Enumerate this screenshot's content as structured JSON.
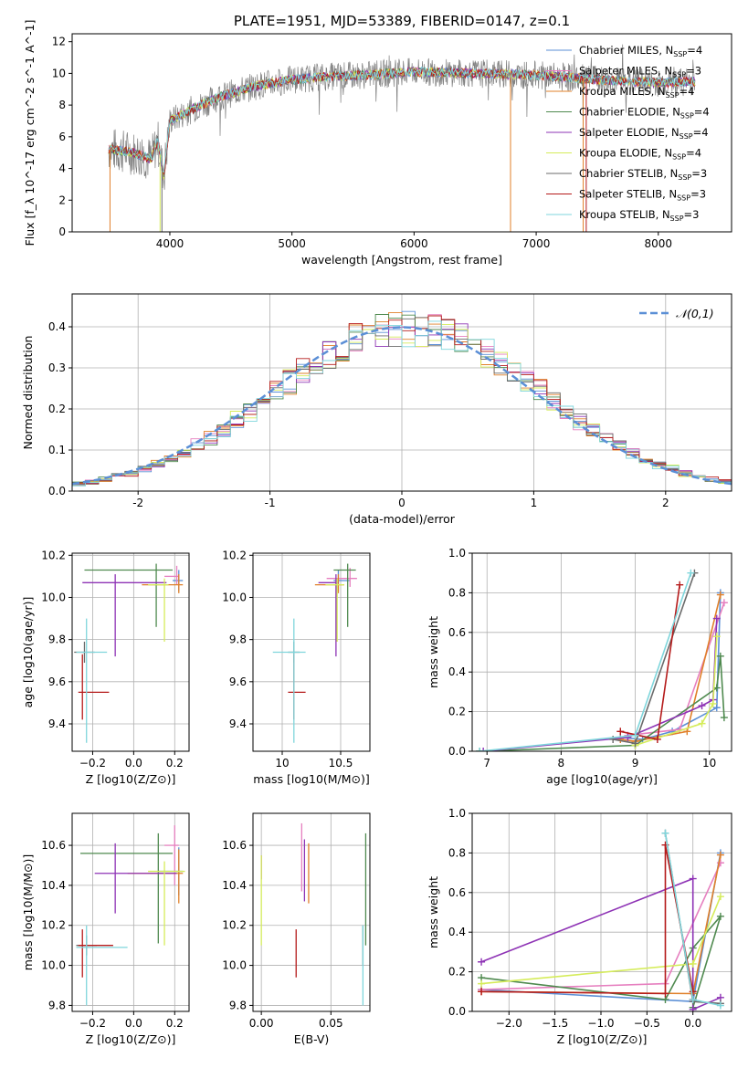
{
  "figure": {
    "title": "PLATE=1951, MJD=53389, FIBERID=0147, z=0.1"
  },
  "colors": {
    "Chabrier MILES": "#5b8fd6",
    "Salpeter MILES": "#e67fbf",
    "Kroupa MILES": "#e0802a",
    "Chabrier ELODIE": "#4f8a4f",
    "Salpeter ELODIE": "#8e33b5",
    "Kroupa ELODIE": "#d5ec5a",
    "Chabrier STELIB": "#6b6b6b",
    "Salpeter STELIB": "#b51b1b",
    "Kroupa STELIB": "#7fd6dc",
    "grid": "#b0b0b0",
    "normal_curve": "#5b8fd6"
  },
  "chart_data": [
    {
      "id": "spectrum",
      "type": "line",
      "xlabel": "wavelength [Angstrom, rest frame]",
      "ylabel": "Flux [f_λ 10^-17 erg cm^-2 s^-1 A^-1]",
      "xlim": [
        3200,
        8600
      ],
      "ylim": [
        0,
        12.5
      ],
      "xticks": [
        4000,
        5000,
        6000,
        7000,
        8000
      ],
      "yticks": [
        0,
        2,
        4,
        6,
        8,
        10,
        12
      ],
      "legend_position": "top-right",
      "legend": [
        "Chabrier MILES, N_SSP=4",
        "Salpeter MILES, N_SSP=3",
        "Kroupa MILES, N_SSP=4",
        "Chabrier ELODIE, N_SSP=4",
        "Salpeter ELODIE, N_SSP=4",
        "Kroupa ELODIE, N_SSP=4",
        "Chabrier STELIB, N_SSP=3",
        "Salpeter STELIB, N_SSP=3",
        "Kroupa STELIB, N_SSP=3"
      ],
      "continuum": [
        [
          3500,
          5.2
        ],
        [
          3700,
          5.0
        ],
        [
          3850,
          4.6
        ],
        [
          3900,
          5.8
        ],
        [
          3950,
          3.5
        ],
        [
          4000,
          7.0
        ],
        [
          4200,
          7.8
        ],
        [
          4400,
          8.5
        ],
        [
          4700,
          9.2
        ],
        [
          5000,
          9.6
        ],
        [
          5300,
          9.8
        ],
        [
          5600,
          9.9
        ],
        [
          6000,
          10.1
        ],
        [
          6500,
          10.0
        ],
        [
          7000,
          9.9
        ],
        [
          7500,
          9.6
        ],
        [
          8000,
          9.4
        ],
        [
          8300,
          9.5
        ]
      ],
      "data_noise_amplitude": 1.8
    },
    {
      "id": "residuals",
      "type": "histogram",
      "xlabel": "(data-model)/error",
      "ylabel": "Normed distribution",
      "xlim": [
        -2.5,
        2.5
      ],
      "ylim": [
        0,
        0.48
      ],
      "xticks": [
        -2,
        -1,
        0,
        1,
        2
      ],
      "yticks": [
        0.0,
        0.1,
        0.2,
        0.3,
        0.4
      ],
      "legend_position": "top-right",
      "legend": [
        "𝒩(0,1)"
      ],
      "bin_width": 0.1
    },
    {
      "id": "age_vs_Z",
      "type": "scatter",
      "xlabel": "Z [log10(Z/Z⊙)]",
      "ylabel": "age  [log10(age/yr)]",
      "xlim": [
        -0.3,
        0.27
      ],
      "ylim": [
        9.27,
        10.21
      ],
      "xticks": [
        -0.2,
        0.0,
        0.2
      ],
      "xticklabels": [
        "−0.2",
        "0.0",
        "0.2"
      ],
      "yticks": [
        9.4,
        9.6,
        9.8,
        10.0,
        10.2
      ],
      "points": [
        {
          "model": "Chabrier MILES",
          "x": 0.22,
          "y": 10.08,
          "ex": [
            0.03,
            0.02
          ],
          "ey": [
            0.05,
            0.05
          ]
        },
        {
          "model": "Salpeter MILES",
          "x": 0.21,
          "y": 10.1,
          "ex": [
            0.06,
            0.01
          ],
          "ey": [
            0.04,
            0.05
          ]
        },
        {
          "model": "Kroupa MILES",
          "x": 0.22,
          "y": 10.06,
          "ex": [
            0.18,
            0.02
          ],
          "ey": [
            0.04,
            0.05
          ]
        },
        {
          "model": "Chabrier ELODIE",
          "x": 0.11,
          "y": 10.13,
          "ex": [
            0.35,
            0.08
          ],
          "ey": [
            0.27,
            0.03
          ]
        },
        {
          "model": "Salpeter ELODIE",
          "x": -0.09,
          "y": 10.07,
          "ex": [
            0.16,
            0.25
          ],
          "ey": [
            0.35,
            0.04
          ]
        },
        {
          "model": "Kroupa ELODIE",
          "x": 0.15,
          "y": 10.06,
          "ex": [
            0.08,
            0.02
          ],
          "ey": [
            0.27,
            0.03
          ]
        },
        {
          "model": "Chabrier STELIB",
          "x": -0.24,
          "y": 9.74,
          "ex": [
            0.05,
            0.05
          ],
          "ey": [
            0.05,
            0.05
          ]
        },
        {
          "model": "Salpeter STELIB",
          "x": -0.25,
          "y": 9.55,
          "ex": [
            0.02,
            0.13
          ],
          "ey": [
            0.13,
            0.18
          ]
        },
        {
          "model": "Kroupa STELIB",
          "x": -0.23,
          "y": 9.74,
          "ex": [
            0.05,
            0.1
          ],
          "ey": [
            0.43,
            0.16
          ]
        }
      ]
    },
    {
      "id": "age_vs_mass",
      "type": "scatter",
      "xlabel": "mass [log10(M/M⊙)]",
      "ylabel": "",
      "xlim": [
        9.75,
        10.75
      ],
      "ylim": [
        9.27,
        10.21
      ],
      "xticks": [
        10.0,
        10.5
      ],
      "yticks": [
        9.4,
        9.6,
        9.8,
        10.0,
        10.2
      ],
      "points": [
        {
          "model": "Chabrier MILES",
          "x": 10.48,
          "y": 10.08,
          "ex": [
            0.04,
            0.1
          ],
          "ey": [
            0.05,
            0.05
          ]
        },
        {
          "model": "Salpeter MILES",
          "x": 10.58,
          "y": 10.09,
          "ex": [
            0.2,
            0.06
          ],
          "ey": [
            0.04,
            0.05
          ]
        },
        {
          "model": "Kroupa MILES",
          "x": 10.48,
          "y": 10.06,
          "ex": [
            0.2,
            0.05
          ],
          "ey": [
            0.04,
            0.05
          ]
        },
        {
          "model": "Chabrier ELODIE",
          "x": 10.56,
          "y": 10.13,
          "ex": [
            0.12,
            0.07
          ],
          "ey": [
            0.27,
            0.03
          ]
        },
        {
          "model": "Salpeter ELODIE",
          "x": 10.46,
          "y": 10.07,
          "ex": [
            0.15,
            0.02
          ],
          "ey": [
            0.35,
            0.04
          ]
        },
        {
          "model": "Kroupa ELODIE",
          "x": 10.47,
          "y": 10.06,
          "ex": [
            0.1,
            0.06
          ],
          "ey": [
            0.27,
            0.03
          ]
        },
        {
          "model": "Chabrier STELIB",
          "x": 10.1,
          "y": 9.74,
          "ex": [
            0.05,
            0.05
          ],
          "ey": [
            0.05,
            0.05
          ]
        },
        {
          "model": "Salpeter STELIB",
          "x": 10.1,
          "y": 9.55,
          "ex": [
            0.05,
            0.1
          ],
          "ey": [
            0.13,
            0.18
          ]
        },
        {
          "model": "Kroupa STELIB",
          "x": 10.1,
          "y": 9.74,
          "ex": [
            0.18,
            0.1
          ],
          "ey": [
            0.43,
            0.16
          ]
        }
      ]
    },
    {
      "id": "massweight_vs_age",
      "type": "line",
      "xlabel": "age  [log10(age/yr)]",
      "ylabel": "mass weight",
      "xlim": [
        6.8,
        10.3
      ],
      "ylim": [
        0,
        1.0
      ],
      "xticks": [
        7,
        8,
        9,
        10
      ],
      "yticks": [
        0.0,
        0.2,
        0.4,
        0.6,
        0.8,
        1.0
      ],
      "series": [
        {
          "model": "Chabrier MILES",
          "points": [
            [
              8.8,
              0.07
            ],
            [
              9.1,
              0.06
            ],
            [
              9.5,
              0.1
            ],
            [
              10.1,
              0.22
            ],
            [
              10.15,
              0.8
            ]
          ]
        },
        {
          "model": "Salpeter MILES",
          "points": [
            [
              8.9,
              0.08
            ],
            [
              9.6,
              0.11
            ],
            [
              10.2,
              0.75
            ]
          ]
        },
        {
          "model": "Kroupa MILES",
          "points": [
            [
              8.8,
              0.06
            ],
            [
              9.0,
              0.05
            ],
            [
              9.7,
              0.1
            ],
            [
              10.15,
              0.79
            ]
          ]
        },
        {
          "model": "Chabrier ELODIE",
          "points": [
            [
              6.9,
              0.0
            ],
            [
              9.0,
              0.03
            ],
            [
              10.1,
              0.32
            ],
            [
              10.15,
              0.48
            ],
            [
              10.2,
              0.17
            ]
          ]
        },
        {
          "model": "Salpeter ELODIE",
          "points": [
            [
              6.95,
              0.0
            ],
            [
              8.9,
              0.07
            ],
            [
              9.9,
              0.23
            ],
            [
              10.05,
              0.26
            ],
            [
              10.1,
              0.67
            ]
          ]
        },
        {
          "model": "Kroupa ELODIE",
          "points": [
            [
              9.0,
              0.03
            ],
            [
              9.9,
              0.14
            ],
            [
              10.05,
              0.24
            ],
            [
              10.1,
              0.58
            ]
          ]
        },
        {
          "model": "Chabrier STELIB",
          "points": [
            [
              8.7,
              0.06
            ],
            [
              9.0,
              0.04
            ],
            [
              9.8,
              0.9
            ]
          ]
        },
        {
          "model": "Salpeter STELIB",
          "points": [
            [
              8.8,
              0.1
            ],
            [
              9.3,
              0.06
            ],
            [
              9.6,
              0.84
            ]
          ]
        },
        {
          "model": "Kroupa STELIB",
          "points": [
            [
              6.9,
              0.0
            ],
            [
              9.0,
              0.08
            ],
            [
              9.75,
              0.9
            ]
          ]
        }
      ]
    },
    {
      "id": "mass_vs_Z",
      "type": "scatter",
      "xlabel": "Z [log10(Z/Z⊙)]",
      "ylabel": "mass [log10(M/M⊙)]",
      "xlim": [
        -0.3,
        0.27
      ],
      "ylim": [
        9.77,
        10.76
      ],
      "xticks": [
        -0.2,
        0.0,
        0.2
      ],
      "xticklabels": [
        "−0.2",
        "0.0",
        "0.2"
      ],
      "yticks": [
        9.8,
        10.0,
        10.2,
        10.4,
        10.6
      ],
      "points": [
        {
          "model": "Chabrier MILES",
          "x": 0.22,
          "y": 10.47,
          "ex": [
            0.1,
            0.02
          ],
          "ey": [
            0.12,
            0.12
          ]
        },
        {
          "model": "Salpeter MILES",
          "x": 0.2,
          "y": 10.6,
          "ex": [
            0.05,
            0.02
          ],
          "ey": [
            0.2,
            0.1
          ]
        },
        {
          "model": "Kroupa MILES",
          "x": 0.22,
          "y": 10.46,
          "ex": [
            0.25,
            0.02
          ],
          "ey": [
            0.15,
            0.12
          ]
        },
        {
          "model": "Chabrier ELODIE",
          "x": 0.12,
          "y": 10.56,
          "ex": [
            0.38,
            0.07
          ],
          "ey": [
            0.45,
            0.1
          ]
        },
        {
          "model": "Salpeter ELODIE",
          "x": -0.09,
          "y": 10.46,
          "ex": [
            0.1,
            0.3
          ],
          "ey": [
            0.2,
            0.15
          ]
        },
        {
          "model": "Kroupa ELODIE",
          "x": 0.15,
          "y": 10.47,
          "ex": [
            0.08,
            0.1
          ],
          "ey": [
            0.37,
            0.05
          ]
        },
        {
          "model": "Chabrier STELIB",
          "x": -0.23,
          "y": 10.1,
          "ex": [
            0.05,
            0.05
          ],
          "ey": [
            0.05,
            0.05
          ]
        },
        {
          "model": "Salpeter STELIB",
          "x": -0.25,
          "y": 10.1,
          "ex": [
            0.02,
            0.15
          ],
          "ey": [
            0.16,
            0.08
          ]
        },
        {
          "model": "Kroupa STELIB",
          "x": -0.23,
          "y": 10.09,
          "ex": [
            0.05,
            0.2
          ],
          "ey": [
            0.29,
            0.11
          ]
        }
      ]
    },
    {
      "id": "mass_vs_ebv",
      "type": "scatter",
      "xlabel": "E(B-V)",
      "ylabel": "",
      "xlim": [
        -0.006,
        0.078
      ],
      "ylim": [
        9.77,
        10.76
      ],
      "xticks": [
        0.0,
        0.05
      ],
      "xticklabels": [
        "0.00",
        "0.05"
      ],
      "yticks": [
        9.8,
        10.0,
        10.2,
        10.4,
        10.6
      ],
      "points": [
        {
          "model": "Salpeter ELODIE",
          "x": 0.0,
          "y": 10.45,
          "ey": [
            0.02,
            0.1
          ]
        },
        {
          "model": "Kroupa ELODIE",
          "x": 0.0,
          "y": 10.3,
          "ey": [
            0.2,
            0.25
          ]
        },
        {
          "model": "Salpeter MILES",
          "x": 0.029,
          "y": 10.5,
          "ey": [
            0.13,
            0.21
          ]
        },
        {
          "model": "Salpeter ELODIE",
          "x": 0.031,
          "y": 10.47,
          "ey": [
            0.15,
            0.16
          ]
        },
        {
          "model": "Kroupa MILES",
          "x": 0.034,
          "y": 10.46,
          "ey": [
            0.15,
            0.15
          ]
        },
        {
          "model": "Salpeter STELIB",
          "x": 0.025,
          "y": 10.06,
          "ey": [
            0.12,
            0.12
          ]
        },
        {
          "model": "Chabrier STELIB",
          "x": 0.073,
          "y": 10.1,
          "ey": [
            0.1,
            0.1
          ]
        },
        {
          "model": "Kroupa STELIB",
          "x": 0.073,
          "y": 10.05,
          "ey": [
            0.25,
            0.15
          ]
        },
        {
          "model": "Chabrier ELODIE",
          "x": 0.075,
          "y": 10.38,
          "ey": [
            0.28,
            0.28
          ]
        }
      ]
    },
    {
      "id": "massweight_vs_Z",
      "type": "line",
      "xlabel": "Z [log10(Z/Z⊙)]",
      "ylabel": "mass weight",
      "xlim": [
        -2.4,
        0.42
      ],
      "ylim": [
        0,
        1.0
      ],
      "xticks": [
        -2.0,
        -1.5,
        -1.0,
        -0.5,
        0.0
      ],
      "xticklabels": [
        "−2.0",
        "−1.5",
        "−1.0",
        "−0.5",
        "0.0"
      ],
      "yticks": [
        0.0,
        0.2,
        0.4,
        0.6,
        0.8,
        1.0
      ],
      "series": [
        {
          "model": "Chabrier MILES",
          "points": [
            [
              -2.3,
              0.11
            ],
            [
              0.0,
              0.05
            ],
            [
              0.3,
              0.8
            ]
          ]
        },
        {
          "model": "Salpeter MILES",
          "points": [
            [
              -2.3,
              0.11
            ],
            [
              -0.3,
              0.14
            ],
            [
              0.3,
              0.75
            ]
          ]
        },
        {
          "model": "Kroupa MILES",
          "points": [
            [
              -2.3,
              0.1
            ],
            [
              0.0,
              0.09
            ],
            [
              0.3,
              0.79
            ]
          ]
        },
        {
          "model": "Chabrier ELODIE",
          "points": [
            [
              -2.3,
              0.17
            ],
            [
              -0.3,
              0.06
            ],
            [
              0.0,
              0.32
            ],
            [
              0.3,
              0.48
            ],
            [
              0.0,
              0.02
            ]
          ]
        },
        {
          "model": "Salpeter ELODIE",
          "points": [
            [
              -2.3,
              0.25
            ],
            [
              0.0,
              0.67
            ],
            [
              0.0,
              0.01
            ],
            [
              0.3,
              0.07
            ]
          ]
        },
        {
          "model": "Kroupa ELODIE",
          "points": [
            [
              -2.3,
              0.14
            ],
            [
              0.0,
              0.24
            ],
            [
              0.3,
              0.58
            ]
          ]
        },
        {
          "model": "Chabrier STELIB",
          "points": [
            [
              -0.3,
              0.9
            ],
            [
              0.0,
              0.05
            ],
            [
              0.3,
              0.04
            ]
          ]
        },
        {
          "model": "Salpeter STELIB",
          "points": [
            [
              -2.3,
              0.1
            ],
            [
              -0.3,
              0.09
            ],
            [
              -0.3,
              0.84
            ],
            [
              0.0,
              0.1
            ],
            [
              0.0,
              0.06
            ]
          ]
        },
        {
          "model": "Kroupa STELIB",
          "points": [
            [
              -0.3,
              0.9
            ],
            [
              0.0,
              0.06
            ],
            [
              0.3,
              0.03
            ]
          ]
        }
      ]
    }
  ]
}
